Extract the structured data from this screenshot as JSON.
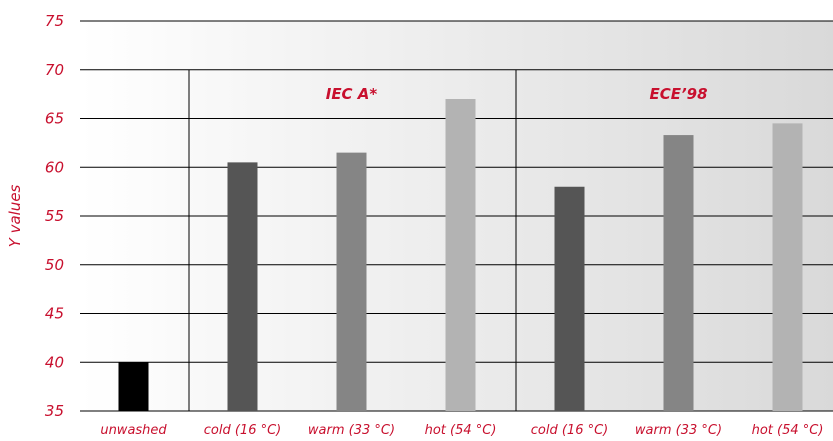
{
  "chart_data": {
    "type": "bar",
    "title": "",
    "xlabel": "",
    "ylabel": "Y values",
    "ylim": [
      35,
      75
    ],
    "yticks": [
      35,
      40,
      45,
      50,
      55,
      60,
      65,
      70,
      75
    ],
    "grid": true,
    "categories": [
      "unwashed",
      "cold (16 °C)",
      "warm (33 °C)",
      "hot (54 °C)",
      "cold (16 °C)",
      "warm (33 °C)",
      "hot (54 °C)"
    ],
    "values": [
      40,
      60.5,
      61.5,
      67,
      58,
      63.3,
      64.5
    ],
    "bar_colors": [
      "#000000",
      "#555555",
      "#858585",
      "#b3b3b3",
      "#555555",
      "#858585",
      "#b3b3b3"
    ],
    "groups": [
      {
        "label": "IEC A*",
        "categories": [
          1,
          2,
          3
        ]
      },
      {
        "label": "ECE’98",
        "categories": [
          4,
          5,
          6
        ]
      }
    ],
    "label_color": "#c8102e",
    "background_gradient": [
      "#ffffff",
      "#d9d9d9"
    ]
  }
}
